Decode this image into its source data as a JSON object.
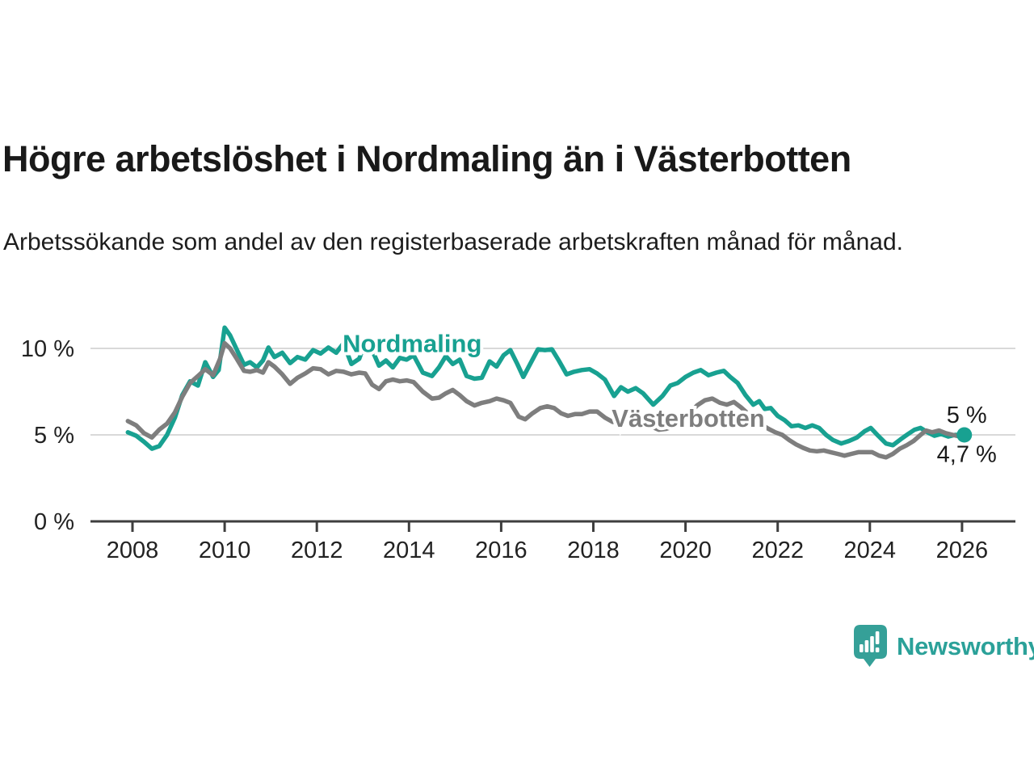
{
  "page": {
    "title": "Högre arbetslöshet i Nordmaling än i Västerbotten",
    "subtitle": "Arbetssökande som andel av den registerbaserade arbetskraften månad för månad."
  },
  "branding": {
    "name": "Newsworthy",
    "logo_color": "#35a098",
    "text_color": "#2ba199"
  },
  "colors": {
    "nordmaling": "#18a191",
    "vasterbotten": "#7e7e7e",
    "axis": "#3e3e3e",
    "grid": "#d9d9d9",
    "text": "#1a1a1a"
  },
  "chart_data": {
    "type": "line",
    "title": "Högre arbetslöshet i Nordmaling än i Västerbotten",
    "subtitle": "Arbetssökande som andel av den registerbaserade arbetskraften månad för månad.",
    "unit": "%",
    "xlabel": "",
    "ylabel": "",
    "x_axis": {
      "ticks": [
        2008,
        2010,
        2012,
        2014,
        2016,
        2018,
        2020,
        2022,
        2024,
        2026
      ],
      "range": [
        2007.9,
        2026.35
      ]
    },
    "y_axis": {
      "ticks": [
        {
          "value": 0,
          "label": "0 %"
        },
        {
          "value": 5,
          "label": "5 %"
        },
        {
          "value": 10,
          "label": "10 %"
        }
      ],
      "range": [
        0,
        11.5
      ],
      "grid": true
    },
    "legend_position": "inline-labels",
    "series": [
      {
        "name": "Nordmaling",
        "color": "#18a191",
        "end_label": "5 %",
        "end_marker": true,
        "label_anchor": {
          "year": 2014.07,
          "value": 9.78
        },
        "points": [
          [
            2007.9,
            5.15
          ],
          [
            2008.08,
            4.95
          ],
          [
            2008.25,
            4.6
          ],
          [
            2008.42,
            4.2
          ],
          [
            2008.58,
            4.35
          ],
          [
            2008.75,
            5.0
          ],
          [
            2008.92,
            6.0
          ],
          [
            2009.08,
            7.3
          ],
          [
            2009.25,
            8.1
          ],
          [
            2009.42,
            7.85
          ],
          [
            2009.58,
            9.2
          ],
          [
            2009.75,
            8.35
          ],
          [
            2009.87,
            8.75
          ],
          [
            2010.0,
            11.2
          ],
          [
            2010.12,
            10.75
          ],
          [
            2010.25,
            10.0
          ],
          [
            2010.42,
            9.05
          ],
          [
            2010.55,
            9.2
          ],
          [
            2010.7,
            8.9
          ],
          [
            2010.83,
            9.3
          ],
          [
            2010.95,
            10.05
          ],
          [
            2011.08,
            9.5
          ],
          [
            2011.25,
            9.75
          ],
          [
            2011.42,
            9.15
          ],
          [
            2011.58,
            9.5
          ],
          [
            2011.75,
            9.35
          ],
          [
            2011.92,
            9.9
          ],
          [
            2012.08,
            9.7
          ],
          [
            2012.25,
            10.05
          ],
          [
            2012.42,
            9.75
          ],
          [
            2012.58,
            10.3
          ],
          [
            2012.75,
            9.1
          ],
          [
            2012.92,
            9.4
          ],
          [
            2013.05,
            10.35
          ],
          [
            2013.2,
            9.9
          ],
          [
            2013.35,
            9.0
          ],
          [
            2013.5,
            9.3
          ],
          [
            2013.65,
            8.9
          ],
          [
            2013.8,
            9.45
          ],
          [
            2013.95,
            9.35
          ],
          [
            2014.1,
            9.6
          ],
          [
            2014.3,
            8.6
          ],
          [
            2014.5,
            8.4
          ],
          [
            2014.65,
            8.9
          ],
          [
            2014.8,
            9.55
          ],
          [
            2014.95,
            9.1
          ],
          [
            2015.1,
            9.35
          ],
          [
            2015.25,
            8.4
          ],
          [
            2015.42,
            8.25
          ],
          [
            2015.58,
            8.3
          ],
          [
            2015.75,
            9.25
          ],
          [
            2015.9,
            8.95
          ],
          [
            2016.05,
            9.6
          ],
          [
            2016.2,
            9.9
          ],
          [
            2016.35,
            9.1
          ],
          [
            2016.48,
            8.35
          ],
          [
            2016.65,
            9.2
          ],
          [
            2016.8,
            9.95
          ],
          [
            2016.95,
            9.9
          ],
          [
            2017.1,
            9.95
          ],
          [
            2017.25,
            9.3
          ],
          [
            2017.42,
            8.5
          ],
          [
            2017.58,
            8.65
          ],
          [
            2017.75,
            8.75
          ],
          [
            2017.92,
            8.8
          ],
          [
            2018.08,
            8.55
          ],
          [
            2018.25,
            8.2
          ],
          [
            2018.45,
            7.25
          ],
          [
            2018.6,
            7.75
          ],
          [
            2018.75,
            7.5
          ],
          [
            2018.92,
            7.7
          ],
          [
            2019.08,
            7.4
          ],
          [
            2019.3,
            6.75
          ],
          [
            2019.5,
            7.25
          ],
          [
            2019.67,
            7.85
          ],
          [
            2019.83,
            8.0
          ],
          [
            2020.0,
            8.35
          ],
          [
            2020.17,
            8.6
          ],
          [
            2020.33,
            8.75
          ],
          [
            2020.5,
            8.45
          ],
          [
            2020.67,
            8.6
          ],
          [
            2020.83,
            8.7
          ],
          [
            2020.97,
            8.35
          ],
          [
            2021.13,
            8.0
          ],
          [
            2021.3,
            7.3
          ],
          [
            2021.47,
            6.75
          ],
          [
            2021.6,
            6.95
          ],
          [
            2021.72,
            6.5
          ],
          [
            2021.85,
            6.55
          ],
          [
            2022.0,
            6.1
          ],
          [
            2022.15,
            5.85
          ],
          [
            2022.3,
            5.5
          ],
          [
            2022.45,
            5.55
          ],
          [
            2022.6,
            5.4
          ],
          [
            2022.75,
            5.55
          ],
          [
            2022.9,
            5.4
          ],
          [
            2023.05,
            5.0
          ],
          [
            2023.2,
            4.7
          ],
          [
            2023.38,
            4.5
          ],
          [
            2023.55,
            4.65
          ],
          [
            2023.72,
            4.85
          ],
          [
            2023.88,
            5.2
          ],
          [
            2024.02,
            5.4
          ],
          [
            2024.18,
            4.95
          ],
          [
            2024.35,
            4.5
          ],
          [
            2024.5,
            4.4
          ],
          [
            2024.67,
            4.75
          ],
          [
            2024.83,
            5.05
          ],
          [
            2024.97,
            5.3
          ],
          [
            2025.1,
            5.4
          ],
          [
            2025.25,
            5.15
          ],
          [
            2025.4,
            4.95
          ],
          [
            2025.55,
            5.05
          ],
          [
            2025.7,
            4.9
          ],
          [
            2025.85,
            5.0
          ],
          [
            2026.05,
            5.0
          ]
        ]
      },
      {
        "name": "Västerbotten",
        "color": "#7e7e7e",
        "end_label": "4,7 %",
        "end_marker": false,
        "label_anchor": {
          "year": 2020.06,
          "value": 5.47
        },
        "points": [
          [
            2007.9,
            5.8
          ],
          [
            2008.08,
            5.55
          ],
          [
            2008.25,
            5.1
          ],
          [
            2008.42,
            4.85
          ],
          [
            2008.58,
            5.3
          ],
          [
            2008.75,
            5.65
          ],
          [
            2008.92,
            6.3
          ],
          [
            2009.08,
            7.2
          ],
          [
            2009.25,
            8.0
          ],
          [
            2009.42,
            8.4
          ],
          [
            2009.58,
            8.8
          ],
          [
            2009.75,
            8.45
          ],
          [
            2009.9,
            9.4
          ],
          [
            2010.0,
            10.3
          ],
          [
            2010.12,
            10.0
          ],
          [
            2010.25,
            9.45
          ],
          [
            2010.42,
            8.7
          ],
          [
            2010.55,
            8.65
          ],
          [
            2010.7,
            8.75
          ],
          [
            2010.83,
            8.6
          ],
          [
            2010.95,
            9.2
          ],
          [
            2011.08,
            8.95
          ],
          [
            2011.25,
            8.5
          ],
          [
            2011.42,
            7.95
          ],
          [
            2011.58,
            8.3
          ],
          [
            2011.75,
            8.55
          ],
          [
            2011.92,
            8.85
          ],
          [
            2012.08,
            8.8
          ],
          [
            2012.25,
            8.5
          ],
          [
            2012.42,
            8.7
          ],
          [
            2012.58,
            8.65
          ],
          [
            2012.75,
            8.5
          ],
          [
            2012.92,
            8.6
          ],
          [
            2013.05,
            8.55
          ],
          [
            2013.2,
            7.9
          ],
          [
            2013.35,
            7.65
          ],
          [
            2013.5,
            8.1
          ],
          [
            2013.65,
            8.2
          ],
          [
            2013.8,
            8.1
          ],
          [
            2013.95,
            8.15
          ],
          [
            2014.1,
            8.05
          ],
          [
            2014.3,
            7.5
          ],
          [
            2014.5,
            7.1
          ],
          [
            2014.65,
            7.15
          ],
          [
            2014.8,
            7.4
          ],
          [
            2014.95,
            7.6
          ],
          [
            2015.1,
            7.3
          ],
          [
            2015.25,
            6.95
          ],
          [
            2015.42,
            6.7
          ],
          [
            2015.58,
            6.85
          ],
          [
            2015.75,
            6.95
          ],
          [
            2015.9,
            7.1
          ],
          [
            2016.05,
            7.0
          ],
          [
            2016.2,
            6.85
          ],
          [
            2016.38,
            6.05
          ],
          [
            2016.52,
            5.9
          ],
          [
            2016.68,
            6.25
          ],
          [
            2016.85,
            6.55
          ],
          [
            2017.0,
            6.65
          ],
          [
            2017.15,
            6.55
          ],
          [
            2017.3,
            6.25
          ],
          [
            2017.45,
            6.1
          ],
          [
            2017.6,
            6.2
          ],
          [
            2017.75,
            6.2
          ],
          [
            2017.92,
            6.35
          ],
          [
            2018.08,
            6.35
          ],
          [
            2018.25,
            6.0
          ],
          [
            2018.42,
            5.75
          ],
          [
            2018.58,
            5.8
          ],
          [
            2018.75,
            5.7
          ],
          [
            2018.92,
            5.8
          ],
          [
            2019.08,
            5.75
          ],
          [
            2019.25,
            5.5
          ],
          [
            2019.42,
            5.3
          ],
          [
            2019.58,
            5.35
          ],
          [
            2019.75,
            5.5
          ],
          [
            2019.92,
            5.75
          ],
          [
            2020.08,
            6.2
          ],
          [
            2020.25,
            6.7
          ],
          [
            2020.42,
            7.0
          ],
          [
            2020.58,
            7.1
          ],
          [
            2020.75,
            6.85
          ],
          [
            2020.9,
            6.75
          ],
          [
            2021.05,
            6.9
          ],
          [
            2021.2,
            6.6
          ],
          [
            2021.35,
            6.25
          ],
          [
            2021.5,
            5.9
          ],
          [
            2021.65,
            5.6
          ],
          [
            2021.8,
            5.35
          ],
          [
            2021.95,
            5.15
          ],
          [
            2022.1,
            5.0
          ],
          [
            2022.25,
            4.7
          ],
          [
            2022.4,
            4.45
          ],
          [
            2022.55,
            4.25
          ],
          [
            2022.7,
            4.1
          ],
          [
            2022.85,
            4.05
          ],
          [
            2023.0,
            4.1
          ],
          [
            2023.15,
            4.0
          ],
          [
            2023.3,
            3.9
          ],
          [
            2023.45,
            3.8
          ],
          [
            2023.6,
            3.9
          ],
          [
            2023.75,
            4.0
          ],
          [
            2023.9,
            4.0
          ],
          [
            2024.05,
            4.0
          ],
          [
            2024.2,
            3.8
          ],
          [
            2024.35,
            3.7
          ],
          [
            2024.5,
            3.9
          ],
          [
            2024.65,
            4.2
          ],
          [
            2024.8,
            4.4
          ],
          [
            2024.95,
            4.65
          ],
          [
            2025.1,
            5.0
          ],
          [
            2025.22,
            5.25
          ],
          [
            2025.35,
            5.15
          ],
          [
            2025.5,
            5.25
          ],
          [
            2025.65,
            5.1
          ],
          [
            2025.8,
            5.0
          ],
          [
            2025.95,
            4.9
          ],
          [
            2026.05,
            4.7
          ]
        ]
      }
    ]
  }
}
